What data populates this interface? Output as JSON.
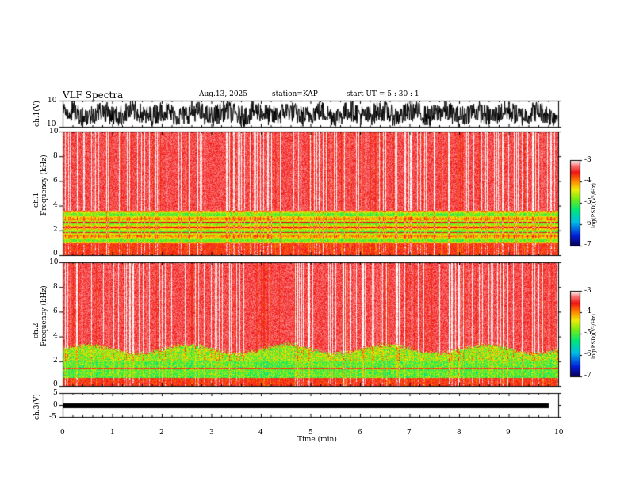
{
  "header": {
    "title": "VLF Spectra",
    "date": "Aug.13, 2025",
    "station": "station=KAP",
    "start": "start  UT  =   5 : 30 : 1"
  },
  "chart_data": [
    {
      "type": "line",
      "name": "ch.1 waveform",
      "ylabel": "ch.1(V)",
      "ylim": [
        -10,
        10
      ],
      "ytick_labels": [
        "10",
        "-10"
      ],
      "xlim": [
        0,
        10
      ]
    },
    {
      "type": "heatmap",
      "name": "ch.1 spectrogram",
      "ylabel": "ch.1\nFrequency  (kHz)",
      "ylabel_line1": "ch.1",
      "ylabel_line2": "Frequency  (kHz)",
      "ylim": [
        0,
        10
      ],
      "ytick_labels": [
        "0",
        "2",
        "4",
        "6",
        "8",
        "10"
      ],
      "xlim": [
        0,
        10
      ],
      "colorbar": {
        "label": "log(PSD)(V²/Hz)",
        "range": [
          -7,
          -3
        ],
        "tick_labels": [
          "-3",
          "-4",
          "-5",
          "-6",
          "-7"
        ]
      }
    },
    {
      "type": "heatmap",
      "name": "ch.2 spectrogram",
      "ylabel": "ch.2\nFrequency  (kHz)",
      "ylabel_line1": "ch.2",
      "ylabel_line2": "Frequency  (kHz)",
      "ylim": [
        0,
        10
      ],
      "ytick_labels": [
        "0",
        "2",
        "4",
        "6",
        "8",
        "10"
      ],
      "xlim": [
        0,
        10
      ],
      "colorbar": {
        "label": "log(PSD)(V²/Hz)",
        "range": [
          -7,
          -3
        ],
        "tick_labels": [
          "-3",
          "-4",
          "-5",
          "-6",
          "-7"
        ]
      }
    },
    {
      "type": "line",
      "name": "ch.3 waveform",
      "ylabel": "ch.3(V)",
      "ylim": [
        -5,
        5
      ],
      "ytick_labels": [
        "5",
        "0",
        "-5"
      ],
      "xlim": [
        0,
        10
      ]
    }
  ],
  "xaxis": {
    "label": "Time  (min)",
    "range": [
      0,
      10
    ],
    "tick_labels": [
      "0",
      "1",
      "2",
      "3",
      "4",
      "5",
      "6",
      "7",
      "8",
      "9",
      "10"
    ]
  }
}
